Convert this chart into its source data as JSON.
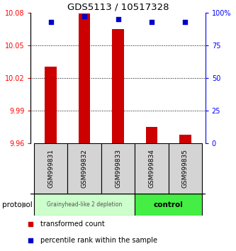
{
  "title": "GDS5113 / 10517328",
  "samples": [
    "GSM999831",
    "GSM999832",
    "GSM999833",
    "GSM999834",
    "GSM999835"
  ],
  "red_values": [
    10.03,
    10.079,
    10.065,
    9.975,
    9.968
  ],
  "blue_values": [
    93,
    97,
    95,
    93,
    93
  ],
  "ylim_left": [
    9.96,
    10.08
  ],
  "ylim_right": [
    0,
    100
  ],
  "yticks_left": [
    9.96,
    9.99,
    10.02,
    10.05,
    10.08
  ],
  "ytick_labels_left": [
    "9.96",
    "9.99",
    "10.02",
    "10.05",
    "10.08"
  ],
  "yticks_right": [
    0,
    25,
    50,
    75,
    100
  ],
  "ytick_labels_right": [
    "0",
    "25",
    "50",
    "75",
    "100%"
  ],
  "group1_label": "Grainyhead-like 2 depletion",
  "group2_label": "control",
  "group1_indices": [
    0,
    1,
    2
  ],
  "group2_indices": [
    3,
    4
  ],
  "group1_color": "#ccffcc",
  "group2_color": "#44ee44",
  "bar_color": "#cc0000",
  "dot_color": "#0000cc",
  "protocol_label": "protocol",
  "legend_red": "transformed count",
  "legend_blue": "percentile rank within the sample",
  "base_value": 9.96
}
